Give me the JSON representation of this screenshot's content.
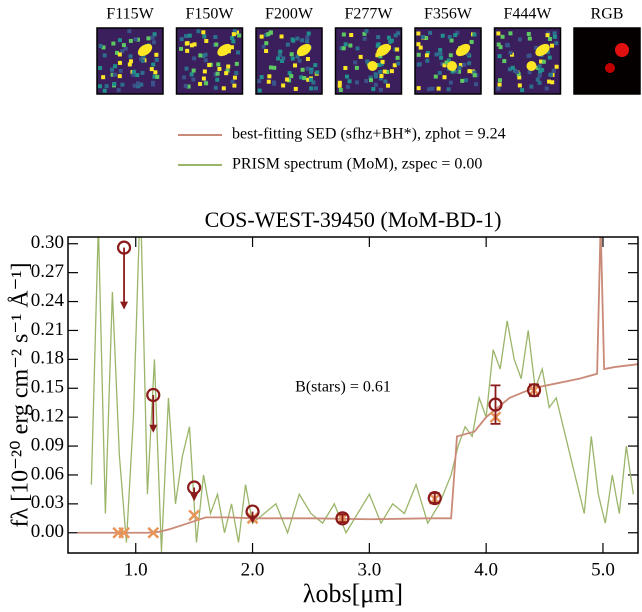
{
  "chart_data": {
    "type": "line",
    "stamps": [
      "F115W",
      "F150W",
      "F200W",
      "F277W",
      "F356W",
      "F444W",
      "RGB"
    ],
    "title": "COS-WEST-39450 (MoM-BD-1)",
    "x_label": "λobs[μm]",
    "y_label": "fλ [10⁻²⁰ erg cm⁻² s⁻¹ Å⁻¹]",
    "annotation": "B(stars) = 0.61",
    "xlim": [
      0.42,
      5.3
    ],
    "ylim": [
      -0.021,
      0.307
    ],
    "xticks": [
      {
        "value": 1,
        "label": "1.0"
      },
      {
        "value": 2,
        "label": "2.0"
      },
      {
        "value": 3,
        "label": "3.0"
      },
      {
        "value": 4,
        "label": "4.0"
      },
      {
        "value": 5,
        "label": "5.0"
      }
    ],
    "yticks": [
      {
        "value": 0,
        "label": "0.00"
      },
      {
        "value": 0.03,
        "label": "0.03"
      },
      {
        "value": 0.06,
        "label": "0.06"
      },
      {
        "value": 0.09,
        "label": "0.09"
      },
      {
        "value": 0.12,
        "label": "0.12"
      },
      {
        "value": 0.15,
        "label": "0.15"
      },
      {
        "value": 0.18,
        "label": "0.18"
      },
      {
        "value": 0.21,
        "label": "0.21"
      },
      {
        "value": 0.24,
        "label": "0.24"
      },
      {
        "value": 0.27,
        "label": "0.27"
      },
      {
        "value": 0.3,
        "label": "0.30"
      }
    ],
    "series": [
      {
        "name": "best-fitting SED (sfhz+BH*), zphot = 9.24",
        "color": "#c98a78",
        "x": [
          0.5,
          0.9,
          1.1,
          1.2,
          1.3,
          1.4,
          1.5,
          1.6,
          1.8,
          2.0,
          2.5,
          3.0,
          3.5,
          3.7,
          3.75,
          3.9,
          4.0,
          4.1,
          4.2,
          4.3,
          4.4,
          4.6,
          4.8,
          4.95,
          4.98,
          5.01,
          5.1,
          5.3
        ],
        "values": [
          0.0,
          0.0,
          0.0,
          0.001,
          0.004,
          0.008,
          0.012,
          0.016,
          0.016,
          0.015,
          0.015,
          0.014,
          0.015,
          0.015,
          0.1,
          0.105,
          0.12,
          0.13,
          0.14,
          0.145,
          0.15,
          0.155,
          0.16,
          0.165,
          0.32,
          0.17,
          0.172,
          0.175
        ]
      },
      {
        "name": "PRISM spectrum (MoM), zspec = 0.00",
        "color": "#9bb56a",
        "x": [
          0.62,
          0.68,
          0.74,
          0.8,
          0.86,
          0.92,
          0.98,
          1.04,
          1.1,
          1.16,
          1.22,
          1.28,
          1.34,
          1.4,
          1.46,
          1.52,
          1.58,
          1.64,
          1.7,
          1.76,
          1.82,
          1.88,
          1.94,
          2.0,
          2.1,
          2.2,
          2.3,
          2.4,
          2.5,
          2.6,
          2.7,
          2.8,
          2.9,
          3.0,
          3.1,
          3.2,
          3.3,
          3.4,
          3.5,
          3.6,
          3.7,
          3.76,
          3.82,
          3.88,
          3.94,
          4.0,
          4.06,
          4.12,
          4.18,
          4.24,
          4.3,
          4.36,
          4.42,
          4.48,
          4.54,
          4.6,
          4.66,
          4.72,
          4.78,
          4.84,
          4.9,
          4.96,
          5.02,
          5.08,
          5.14,
          5.2,
          5.26
        ],
        "values": [
          0.05,
          0.32,
          0.02,
          0.25,
          0.08,
          -0.01,
          0.12,
          0.35,
          0.04,
          0.18,
          -0.02,
          0.14,
          0.03,
          0.08,
          0.11,
          -0.01,
          0.06,
          0.02,
          0.04,
          0.0,
          0.03,
          -0.01,
          0.05,
          0.01,
          0.02,
          0.03,
          0.0,
          0.04,
          0.02,
          0.01,
          0.03,
          0.0,
          0.02,
          0.04,
          0.01,
          0.03,
          0.02,
          0.05,
          0.01,
          0.03,
          0.06,
          0.09,
          0.11,
          0.1,
          0.14,
          0.12,
          0.19,
          0.17,
          0.22,
          0.18,
          0.16,
          0.21,
          0.15,
          0.17,
          0.13,
          0.14,
          0.11,
          0.08,
          0.05,
          0.02,
          0.1,
          0.04,
          0.01,
          0.06,
          0.02,
          0.09,
          0.04
        ]
      }
    ],
    "model_photometry": {
      "color": "#e8955a",
      "x": [
        0.85,
        0.9,
        1.15,
        1.5,
        2.0,
        2.77,
        3.56,
        4.08,
        4.41
      ],
      "values": [
        0,
        0,
        0,
        0.018,
        0.015,
        0.015,
        0.035,
        0.12,
        0.148
      ]
    },
    "photometry": {
      "color": "#8b1a1a",
      "x": [
        0.9,
        1.15,
        1.5,
        2.0,
        2.77,
        3.56,
        4.08,
        4.41
      ],
      "values": [
        0.296,
        0.143,
        0.047,
        0.022,
        0.015,
        0.036,
        0.133,
        0.148
      ],
      "errors": [
        null,
        null,
        null,
        null,
        0.004,
        0.005,
        0.02,
        0.006
      ],
      "upper_limit": [
        true,
        true,
        true,
        true,
        false,
        false,
        false,
        false
      ]
    }
  }
}
